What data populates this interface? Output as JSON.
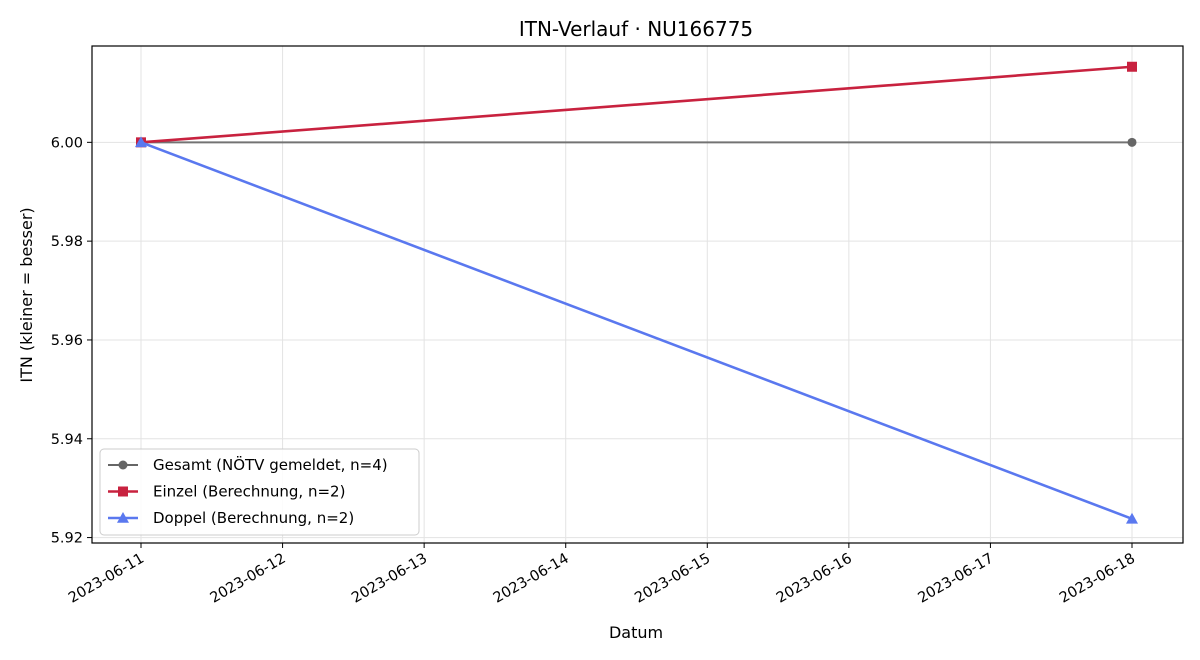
{
  "chart_data": {
    "type": "line",
    "title": "ITN-Verlauf · NU166775",
    "xlabel": "Datum",
    "ylabel": "ITN  (kleiner = besser)",
    "x_tick_labels": [
      "2023-06-11",
      "2023-06-12",
      "2023-06-13",
      "2023-06-14",
      "2023-06-15",
      "2023-06-16",
      "2023-06-17",
      "2023-06-18"
    ],
    "y_tick_labels": [
      "5.92",
      "5.94",
      "5.96",
      "5.98",
      "6.00"
    ],
    "y_ticks": [
      5.92,
      5.94,
      5.96,
      5.98,
      6.0
    ],
    "xlim": [
      "2023-06-10",
      "2023-06-18"
    ],
    "ylim": [
      5.9189,
      6.0195
    ],
    "grid": true,
    "legend_position": "lower-left",
    "series": [
      {
        "name": "Gesamt (NÖTV gemeldet, n=4)",
        "color": "#666666",
        "marker": "circle",
        "x": [
          "2023-06-11",
          "2023-06-18"
        ],
        "y": [
          6.0,
          6.0
        ]
      },
      {
        "name": "Einzel (Berechnung, n=2)",
        "color": "#c8223f",
        "marker": "square",
        "x": [
          "2023-06-11",
          "2023-06-18"
        ],
        "y": [
          6.0,
          6.0153
        ]
      },
      {
        "name": "Doppel (Berechnung, n=2)",
        "color": "#5a78ef",
        "marker": "triangle",
        "x": [
          "2023-06-11",
          "2023-06-18"
        ],
        "y": [
          6.0,
          5.9238
        ]
      }
    ]
  }
}
